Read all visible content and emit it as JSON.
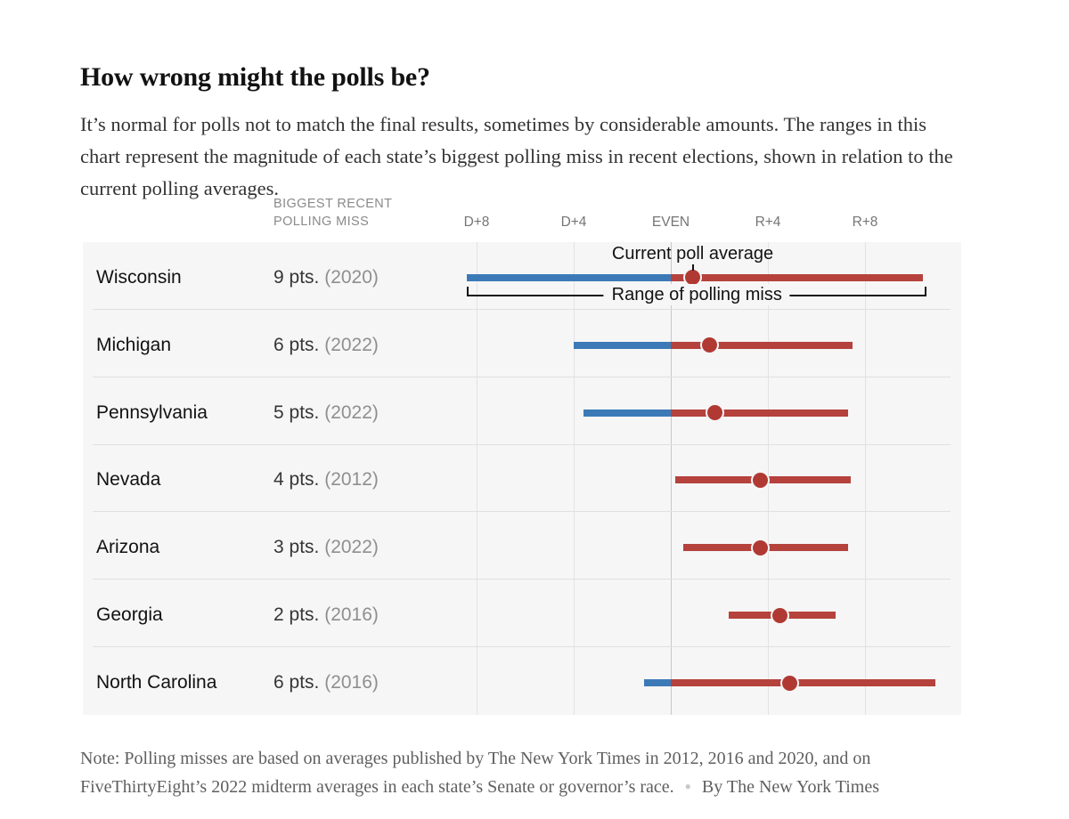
{
  "title": "How wrong might the polls be?",
  "subtitle": "It’s normal for polls not to match the final results, sometimes by considerable amounts. The ranges in this chart represent the magnitude of each state’s biggest polling miss in recent elections, shown in relation to the current polling averages.",
  "chart_data": {
    "type": "range-dot",
    "column_header": "BIGGEST RECENT\nPOLLING MISS",
    "axis": {
      "orientation": "Democratic margin left, Republican margin right",
      "ticks": [
        {
          "label": "D+8",
          "value": -8
        },
        {
          "label": "D+4",
          "value": -4
        },
        {
          "label": "EVEN",
          "value": 0
        },
        {
          "label": "R+4",
          "value": 4
        },
        {
          "label": "R+8",
          "value": 8
        }
      ]
    },
    "annotations": {
      "current_poll_average": "Current poll average",
      "range_of_polling_miss": "Range of polling miss"
    },
    "colors": {
      "dem_bar": "#3c7ab7",
      "rep_bar": "#b5423c",
      "dot": "#b03a33"
    },
    "rows": [
      {
        "state": "Wisconsin",
        "miss": "9 pts.",
        "year": "(2020)",
        "range_lo": -8.4,
        "poll_avg": 0.9,
        "range_hi": 10.4,
        "annotated": true
      },
      {
        "state": "Michigan",
        "miss": "6 pts.",
        "year": "(2022)",
        "range_lo": -4.0,
        "poll_avg": 1.6,
        "range_hi": 7.5
      },
      {
        "state": "Pennsylvania",
        "miss": "5 pts.",
        "year": "(2022)",
        "range_lo": -3.6,
        "poll_avg": 1.8,
        "range_hi": 7.3
      },
      {
        "state": "Nevada",
        "miss": "4 pts.",
        "year": "(2012)",
        "range_lo": 0.2,
        "poll_avg": 3.7,
        "range_hi": 7.4
      },
      {
        "state": "Arizona",
        "miss": "3 pts.",
        "year": "(2022)",
        "range_lo": 0.5,
        "poll_avg": 3.7,
        "range_hi": 7.3
      },
      {
        "state": "Georgia",
        "miss": "2 pts.",
        "year": "(2016)",
        "range_lo": 2.4,
        "poll_avg": 4.5,
        "range_hi": 6.8
      },
      {
        "state": "North Carolina",
        "miss": "6 pts.",
        "year": "(2016)",
        "range_lo": -1.1,
        "poll_avg": 4.9,
        "range_hi": 10.9
      }
    ]
  },
  "note": {
    "text": "Note: Polling misses are based on averages published by The New York Times in 2012, 2016 and 2020, and on FiveThirtyEight’s 2022 midterm averages in each state’s Senate or governor’s race.",
    "separator": "●",
    "byline": "By The New York Times"
  }
}
